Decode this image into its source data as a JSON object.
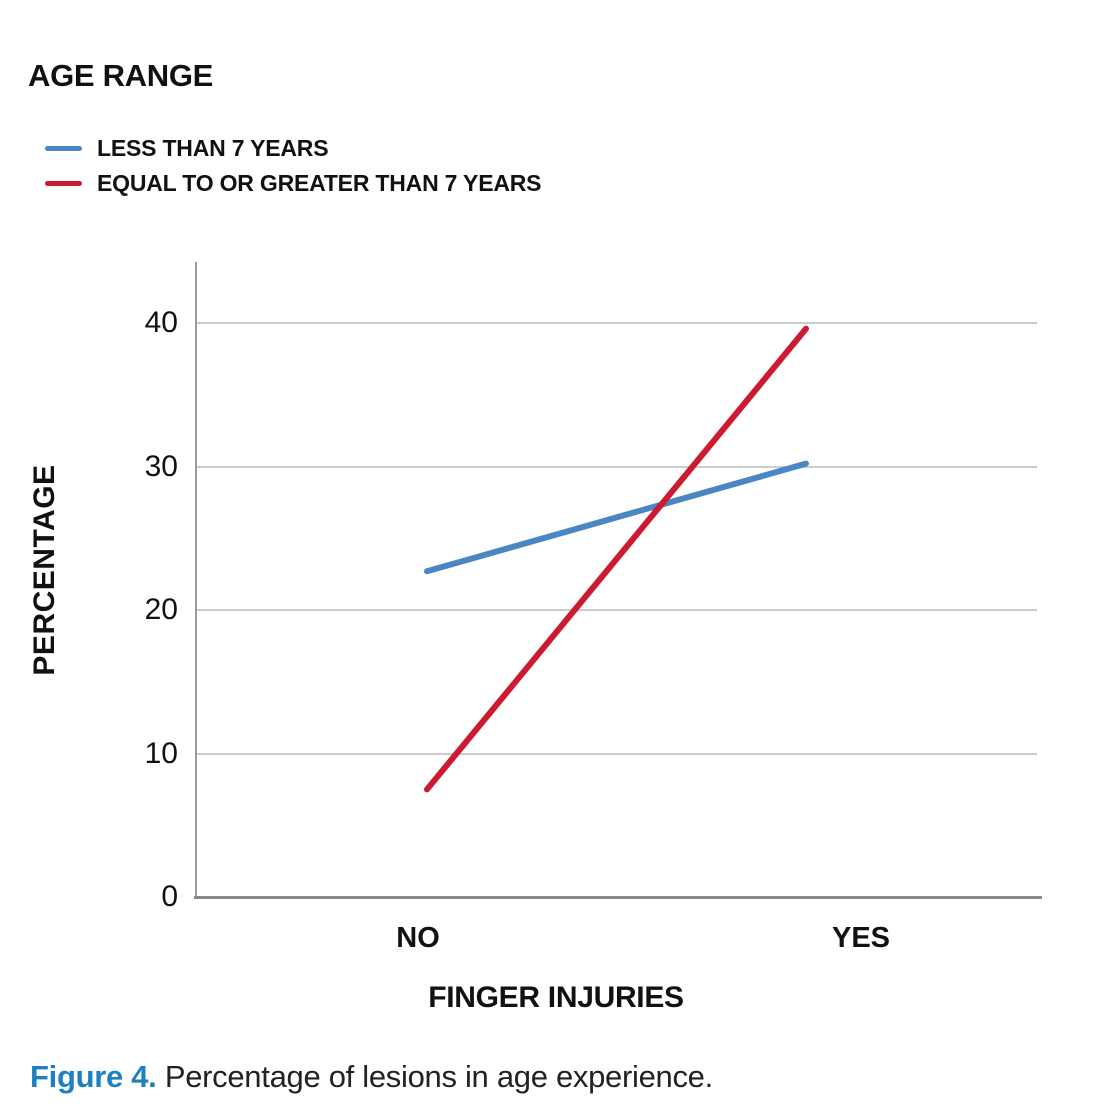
{
  "figure": {
    "legend_title": "AGE RANGE",
    "caption_prefix": "Figure 4.",
    "caption_text": "Percentage of lesions in age experience."
  },
  "chart_data": {
    "type": "line",
    "title": "AGE RANGE",
    "categories": [
      "NO",
      "YES"
    ],
    "series": [
      {
        "name": "LESS THAN 7 YEARS",
        "color": "#4a86c2",
        "values": [
          22.7,
          30.2
        ]
      },
      {
        "name": "EQUAL TO OR GREATER THAN 7 YEARS",
        "color": "#cc1a31",
        "values": [
          7.5,
          39.6
        ]
      }
    ],
    "xlabel": "FINGER INJURIES",
    "ylabel": "PERCENTAGE",
    "ylim": [
      0,
      44
    ],
    "yticks": [
      0,
      10,
      20,
      30,
      40
    ],
    "grid": "horizontal",
    "legend_position": "top-left"
  },
  "colors": {
    "grid": "#cccccc",
    "axis": "#9a9a9a",
    "axis_bottom": "#8a8a8a",
    "caption_accent": "#1e80c0",
    "text": "#111111"
  }
}
